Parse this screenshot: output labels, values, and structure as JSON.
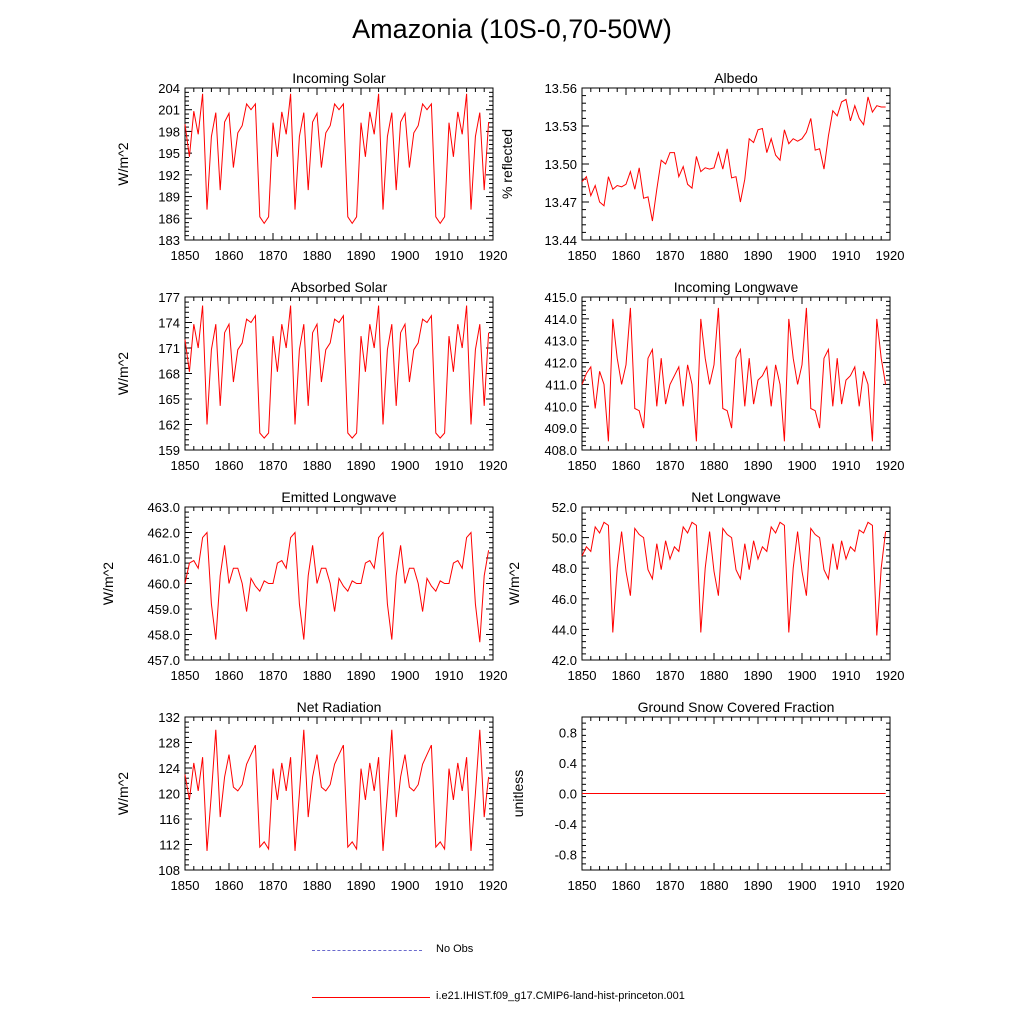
{
  "title": "Amazonia (10S-0,70-50W)",
  "colors": {
    "model": "#ff0000",
    "obs": "#6a6acd"
  },
  "legend": {
    "obs_label": "No Obs",
    "model_label": "i.e21.IHIST.f09_g17.CMIP6-land-hist-princeton.001"
  },
  "chart_data": [
    {
      "type": "line",
      "title": "Incoming Solar",
      "ylabel": "W/m^2",
      "xlim": [
        1850,
        1920
      ],
      "xticks": [
        "1850",
        "1860",
        "1870",
        "1880",
        "1890",
        "1900",
        "1910",
        "1920"
      ],
      "ylim": [
        183,
        204
      ],
      "yticks": [
        "183",
        "186",
        "189",
        "192",
        "195",
        "198",
        "201",
        "204"
      ],
      "x_start": 1850,
      "series": [
        {
          "values": [
            199.0,
            194.5,
            200.8,
            197.6,
            203.2,
            187.2,
            197.3,
            200.6,
            189.9,
            199.3,
            200.5,
            193.0,
            197.8,
            198.8,
            201.8,
            201.0,
            201.8,
            186.2,
            185.3,
            186.2,
            199.2,
            194.5,
            200.7,
            197.6,
            203.2,
            187.2,
            197.3,
            200.6,
            189.9,
            199.3,
            200.5,
            193.0,
            197.8,
            198.8,
            201.8,
            201.0,
            201.8,
            186.2,
            185.3,
            186.2,
            199.2,
            194.5,
            200.7,
            197.6,
            203.2,
            187.2,
            197.3,
            200.6,
            189.9,
            199.3,
            200.5,
            193.0,
            197.8,
            198.8,
            201.8,
            201.0,
            201.8,
            186.2,
            185.3,
            186.2,
            199.2,
            194.5,
            200.7,
            197.6,
            203.2,
            187.2,
            197.3,
            200.6,
            189.9,
            199.3
          ]
        }
      ]
    },
    {
      "type": "line",
      "title": "Albedo",
      "ylabel": "% reflected",
      "xlim": [
        1850,
        1920
      ],
      "xticks": [
        "1850",
        "1860",
        "1870",
        "1880",
        "1890",
        "1900",
        "1910",
        "1920"
      ],
      "ylim": [
        13.44,
        13.56
      ],
      "yticks": [
        "13.44",
        "13.47",
        "13.50",
        "13.53",
        "13.56"
      ],
      "x_start": 1850,
      "series": [
        {
          "values": [
            13.486,
            13.49,
            13.475,
            13.483,
            13.47,
            13.467,
            13.49,
            13.48,
            13.483,
            13.482,
            13.484,
            13.494,
            13.48,
            13.497,
            13.473,
            13.474,
            13.455,
            13.48,
            13.503,
            13.5,
            13.509,
            13.509,
            13.49,
            13.498,
            13.484,
            13.481,
            13.506,
            13.494,
            13.497,
            13.496,
            13.497,
            13.509,
            13.496,
            13.512,
            13.489,
            13.49,
            13.47,
            13.488,
            13.52,
            13.517,
            13.527,
            13.528,
            13.509,
            13.52,
            13.507,
            13.503,
            13.527,
            13.516,
            13.52,
            13.518,
            13.52,
            13.525,
            13.536,
            13.511,
            13.512,
            13.496,
            13.522,
            13.542,
            13.538,
            13.549,
            13.551,
            13.534,
            13.546,
            13.536,
            13.531,
            13.553,
            13.541,
            13.546,
            13.545,
            13.545
          ]
        }
      ]
    },
    {
      "type": "line",
      "title": "Absorbed Solar",
      "ylabel": "W/m^2",
      "xlim": [
        1850,
        1920
      ],
      "xticks": [
        "1850",
        "1860",
        "1870",
        "1880",
        "1890",
        "1900",
        "1910",
        "1920"
      ],
      "ylim": [
        159,
        177
      ],
      "yticks": [
        "159",
        "162",
        "165",
        "168",
        "171",
        "174",
        "177"
      ],
      "x_start": 1850,
      "series": [
        {
          "values": [
            172.0,
            168.2,
            173.8,
            171.0,
            176.0,
            162.0,
            170.8,
            173.8,
            164.2,
            172.8,
            173.8,
            167.0,
            170.8,
            171.6,
            174.4,
            174.0,
            174.8,
            161.0,
            160.4,
            161.0,
            172.4,
            168.2,
            173.8,
            171.0,
            176.0,
            162.0,
            170.8,
            173.8,
            164.2,
            172.8,
            173.8,
            167.0,
            170.8,
            171.6,
            174.4,
            174.0,
            174.8,
            161.0,
            160.4,
            161.0,
            172.4,
            168.2,
            173.8,
            171.0,
            176.0,
            162.0,
            170.8,
            173.8,
            164.2,
            172.8,
            173.8,
            167.0,
            170.8,
            171.6,
            174.4,
            174.0,
            174.8,
            161.0,
            160.4,
            161.0,
            172.4,
            168.2,
            173.8,
            171.0,
            176.0,
            162.0,
            170.8,
            173.8,
            164.2,
            172.8
          ]
        }
      ]
    },
    {
      "type": "line",
      "title": "Incoming Longwave",
      "ylabel": "",
      "xlim": [
        1850,
        1920
      ],
      "xticks": [
        "1850",
        "1860",
        "1870",
        "1880",
        "1890",
        "1900",
        "1910",
        "1920"
      ],
      "ylim": [
        408.0,
        415.0
      ],
      "yticks": [
        "408.0",
        "409.0",
        "410.0",
        "411.0",
        "412.0",
        "413.0",
        "414.0",
        "415.0"
      ],
      "x_start": 1850,
      "series": [
        {
          "values": [
            411.0,
            411.5,
            411.8,
            409.9,
            411.6,
            411.0,
            408.4,
            414.0,
            412.2,
            411.0,
            411.9,
            414.5,
            409.9,
            409.8,
            409.0,
            412.2,
            412.6,
            410.0,
            412.2,
            410.1,
            411.0,
            411.4,
            411.8,
            410.0,
            411.9,
            411.0,
            408.4,
            414.0,
            412.2,
            411.0,
            411.9,
            414.5,
            409.9,
            409.8,
            409.0,
            412.2,
            412.6,
            410.0,
            412.2,
            410.1,
            411.2,
            411.4,
            411.8,
            410.0,
            411.9,
            411.0,
            408.4,
            414.0,
            412.2,
            411.0,
            411.9,
            414.5,
            409.9,
            409.8,
            409.0,
            412.2,
            412.6,
            410.0,
            412.2,
            410.1,
            411.2,
            411.4,
            411.8,
            410.0,
            411.6,
            411.0,
            408.4,
            414.0,
            412.2,
            411.0
          ]
        }
      ]
    },
    {
      "type": "line",
      "title": "Emitted Longwave",
      "ylabel": "W/m^2",
      "xlim": [
        1850,
        1920
      ],
      "xticks": [
        "1850",
        "1860",
        "1870",
        "1880",
        "1890",
        "1900",
        "1910",
        "1920"
      ],
      "ylim": [
        457.0,
        463.0
      ],
      "yticks": [
        "457.0",
        "458.0",
        "459.0",
        "460.0",
        "461.0",
        "462.0",
        "463.0"
      ],
      "x_start": 1850,
      "series": [
        {
          "values": [
            460.0,
            460.8,
            460.9,
            460.6,
            461.8,
            462.0,
            459.2,
            457.8,
            460.3,
            461.5,
            460.0,
            460.6,
            460.6,
            460.0,
            458.9,
            460.2,
            459.9,
            459.7,
            460.1,
            460.0,
            460.0,
            460.8,
            460.9,
            460.6,
            461.8,
            462.0,
            459.2,
            457.8,
            460.3,
            461.5,
            460.0,
            460.6,
            460.6,
            460.0,
            458.9,
            460.2,
            459.9,
            459.7,
            460.1,
            460.0,
            460.0,
            460.8,
            460.9,
            460.6,
            461.8,
            462.0,
            459.2,
            457.8,
            460.3,
            461.5,
            460.0,
            460.6,
            460.6,
            460.0,
            458.9,
            460.2,
            459.9,
            459.7,
            460.1,
            460.0,
            460.0,
            460.8,
            460.9,
            460.6,
            461.8,
            462.0,
            459.2,
            457.7,
            460.3,
            461.3
          ]
        }
      ]
    },
    {
      "type": "line",
      "title": "Net Longwave",
      "ylabel": "W/m^2",
      "xlim": [
        1850,
        1920
      ],
      "xticks": [
        "1850",
        "1860",
        "1870",
        "1880",
        "1890",
        "1900",
        "1910",
        "1920"
      ],
      "ylim": [
        42.0,
        52.0
      ],
      "yticks": [
        "42.0",
        "44.0",
        "46.0",
        "48.0",
        "50.0",
        "52.0"
      ],
      "x_start": 1850,
      "series": [
        {
          "values": [
            48.8,
            49.4,
            49.1,
            50.7,
            50.3,
            51.0,
            50.8,
            43.8,
            48.0,
            50.4,
            47.8,
            46.2,
            50.6,
            50.2,
            50.0,
            47.9,
            47.3,
            49.6,
            47.9,
            49.8,
            48.6,
            49.4,
            49.1,
            50.7,
            50.3,
            51.0,
            50.8,
            43.8,
            48.0,
            50.4,
            47.8,
            46.2,
            50.6,
            50.2,
            50.0,
            47.9,
            47.3,
            49.6,
            47.9,
            49.8,
            48.6,
            49.4,
            49.1,
            50.7,
            50.3,
            51.0,
            50.8,
            43.8,
            48.0,
            50.4,
            47.8,
            46.2,
            50.6,
            50.2,
            50.0,
            47.9,
            47.3,
            49.6,
            47.9,
            49.8,
            48.6,
            49.4,
            49.1,
            50.5,
            50.3,
            51.0,
            50.8,
            43.6,
            48.0,
            50.4
          ]
        }
      ]
    },
    {
      "type": "line",
      "title": "Net Radiation",
      "ylabel": "W/m^2",
      "xlim": [
        1850,
        1920
      ],
      "xticks": [
        "1850",
        "1860",
        "1870",
        "1880",
        "1890",
        "1900",
        "1910",
        "1920"
      ],
      "ylim": [
        108,
        132
      ],
      "yticks": [
        "108",
        "112",
        "116",
        "120",
        "124",
        "128",
        "132"
      ],
      "x_start": 1850,
      "series": [
        {
          "values": [
            123.0,
            119.0,
            124.8,
            120.4,
            125.7,
            111.0,
            120.0,
            130.0,
            116.3,
            122.6,
            126.1,
            121.0,
            120.4,
            121.4,
            124.6,
            126.1,
            127.6,
            111.6,
            112.4,
            111.3,
            123.9,
            119.0,
            124.8,
            120.4,
            125.7,
            111.0,
            120.0,
            130.0,
            116.3,
            122.6,
            126.1,
            121.0,
            120.4,
            121.4,
            124.6,
            126.1,
            127.6,
            111.6,
            112.4,
            111.3,
            123.9,
            119.0,
            124.8,
            120.4,
            125.7,
            111.0,
            120.0,
            130.0,
            116.3,
            122.6,
            126.1,
            121.0,
            120.4,
            121.4,
            124.6,
            126.1,
            127.6,
            111.6,
            112.4,
            111.3,
            123.9,
            119.0,
            124.8,
            120.4,
            125.7,
            111.0,
            120.0,
            130.0,
            116.3,
            122.6
          ]
        }
      ]
    },
    {
      "type": "line",
      "title": "Ground Snow Covered Fraction",
      "ylabel": "unitless",
      "xlim": [
        1850,
        1920
      ],
      "xticks": [
        "1850",
        "1860",
        "1870",
        "1880",
        "1890",
        "1900",
        "1910",
        "1920"
      ],
      "ylim": [
        -1.0,
        1.0
      ],
      "yticks": [
        "-0.8",
        "-0.4",
        "0.0",
        "0.4",
        "0.8"
      ],
      "ytick_values": [
        -0.8,
        -0.4,
        0.0,
        0.4,
        0.8
      ],
      "x_start": 1850,
      "series": [
        {
          "values": [
            0,
            0,
            0,
            0,
            0,
            0,
            0,
            0,
            0,
            0,
            0,
            0,
            0,
            0,
            0,
            0,
            0,
            0,
            0,
            0,
            0,
            0,
            0,
            0,
            0,
            0,
            0,
            0,
            0,
            0,
            0,
            0,
            0,
            0,
            0,
            0,
            0,
            0,
            0,
            0,
            0,
            0,
            0,
            0,
            0,
            0,
            0,
            0,
            0,
            0,
            0,
            0,
            0,
            0,
            0,
            0,
            0,
            0,
            0,
            0,
            0,
            0,
            0,
            0,
            0,
            0,
            0,
            0,
            0,
            0
          ]
        }
      ]
    }
  ]
}
